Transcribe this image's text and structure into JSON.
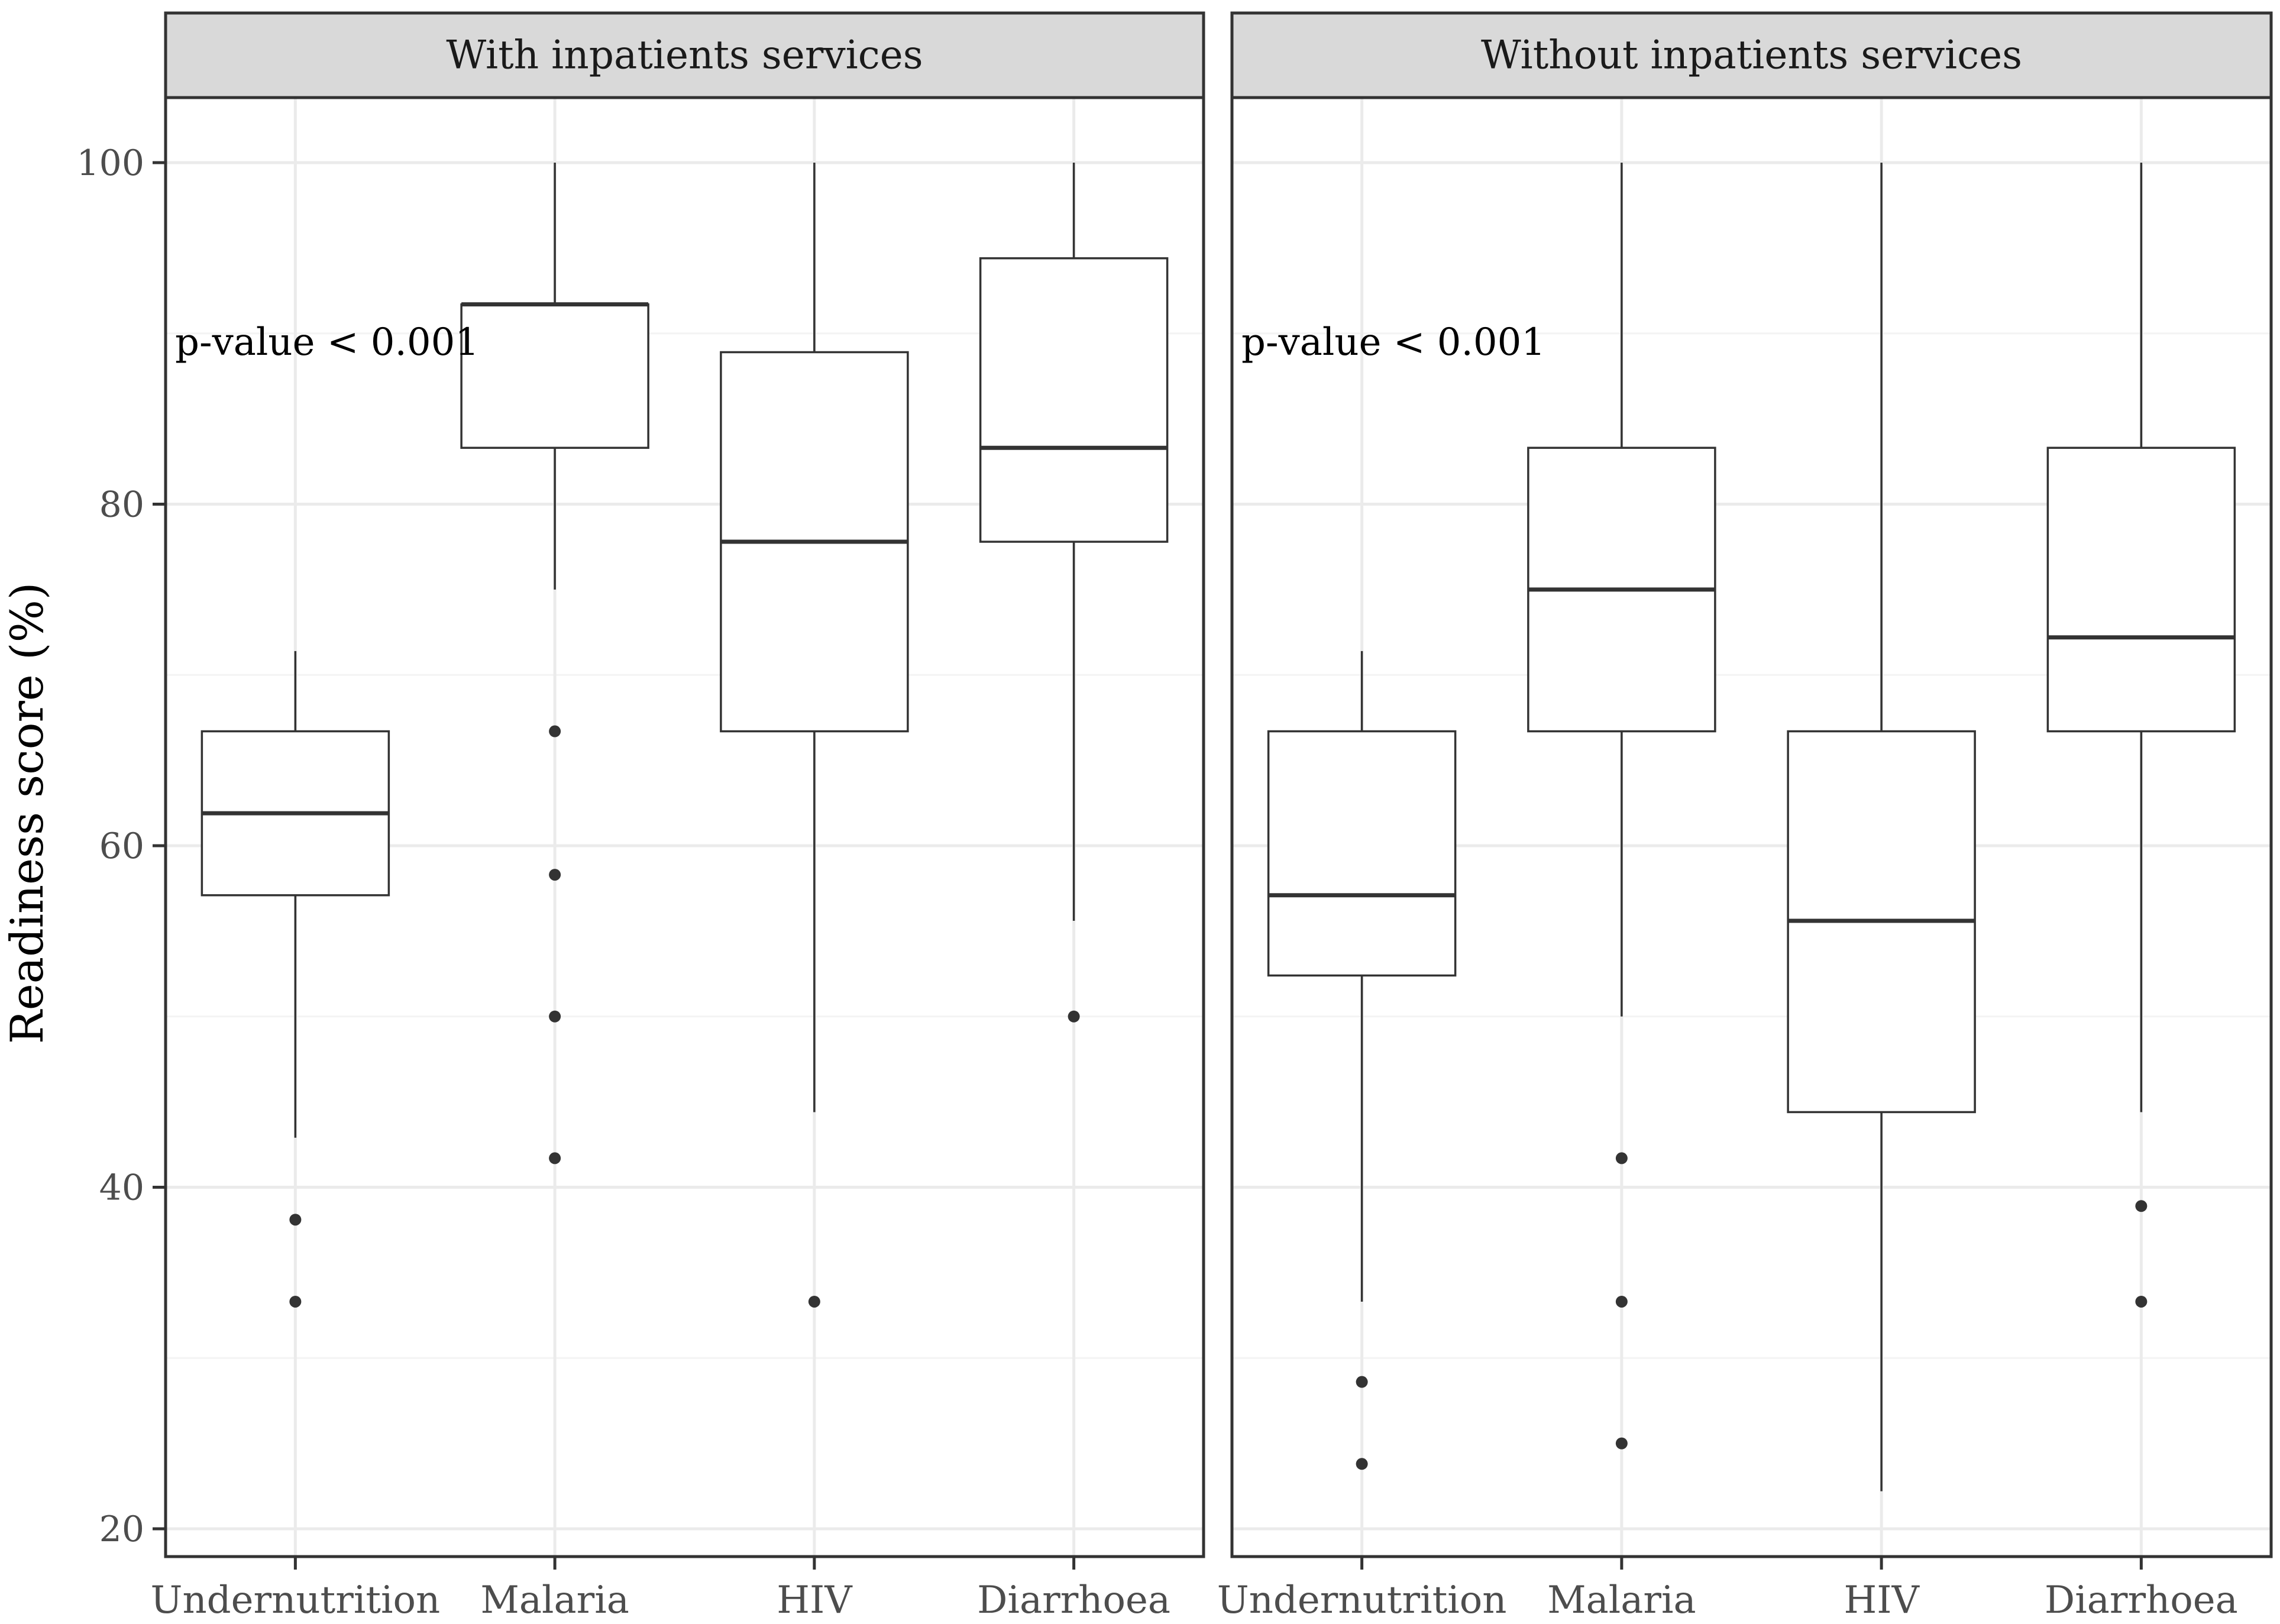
{
  "chart_data": {
    "type": "boxplot",
    "ylabel": "Readiness score (%)",
    "xlabel": "",
    "ylim": [
      17,
      104
    ],
    "yticks": [
      20,
      40,
      60,
      80,
      100
    ],
    "yminor": [
      30,
      50,
      70,
      90
    ],
    "categories": [
      "Undernutrition",
      "Malaria",
      "HIV",
      "Diarrhoea"
    ],
    "panels": [
      {
        "title": "With inpatients services",
        "annotation": "p-value < 0.001",
        "annotation_y": 89.5,
        "boxes": [
          {
            "category": "Undernutrition",
            "min": 42.9,
            "q1": 57.1,
            "median": 61.9,
            "q3": 66.7,
            "max": 71.4,
            "outliers": [
              38.1,
              33.3
            ]
          },
          {
            "category": "Malaria",
            "min": 75.0,
            "q1": 83.3,
            "median": 91.7,
            "q3": 91.7,
            "max": 100,
            "outliers": [
              66.7,
              58.3,
              50.0,
              41.7
            ]
          },
          {
            "category": "HIV",
            "min": 44.4,
            "q1": 66.7,
            "median": 77.8,
            "q3": 88.9,
            "max": 100,
            "outliers": [
              33.3
            ]
          },
          {
            "category": "Diarrhoea",
            "min": 55.6,
            "q1": 77.8,
            "median": 83.3,
            "q3": 94.4,
            "max": 100,
            "outliers": [
              50.0
            ]
          }
        ]
      },
      {
        "title": "Without inpatients services",
        "annotation": "p-value < 0.001",
        "annotation_y": 89.5,
        "boxes": [
          {
            "category": "Undernutrition",
            "min": 33.3,
            "q1": 52.4,
            "median": 57.1,
            "q3": 66.7,
            "max": 71.4,
            "outliers": [
              28.6,
              23.8
            ]
          },
          {
            "category": "Malaria",
            "min": 50.0,
            "q1": 66.7,
            "median": 75.0,
            "q3": 83.3,
            "max": 100,
            "outliers": [
              41.7,
              33.3,
              25.0
            ]
          },
          {
            "category": "HIV",
            "min": 22.2,
            "q1": 44.4,
            "median": 55.6,
            "q3": 66.7,
            "max": 100,
            "outliers": []
          },
          {
            "category": "Diarrhoea",
            "min": 44.4,
            "q1": 66.7,
            "median": 72.2,
            "q3": 83.3,
            "max": 100,
            "outliers": [
              38.9,
              33.3
            ]
          }
        ]
      }
    ]
  }
}
